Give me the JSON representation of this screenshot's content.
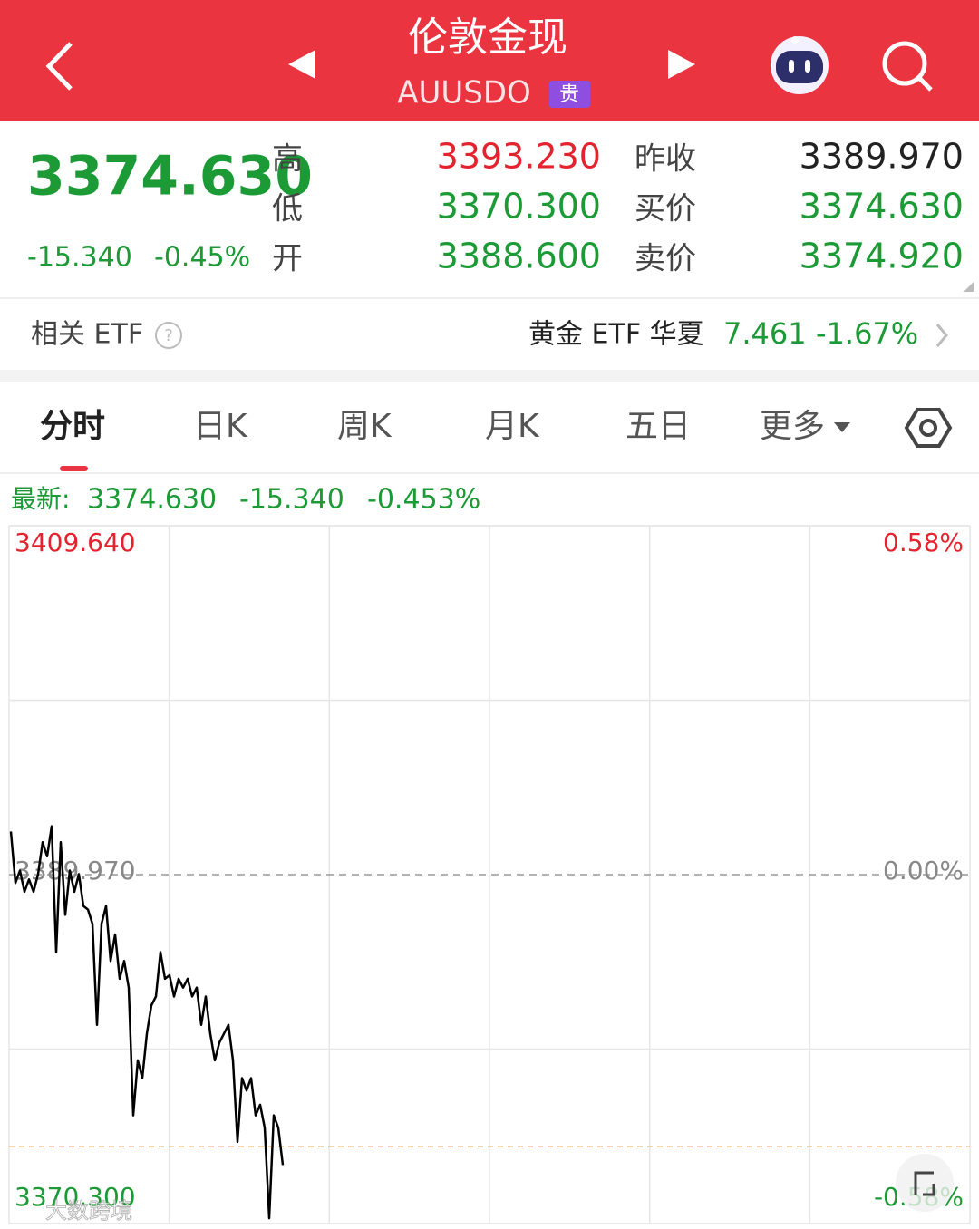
{
  "header": {
    "title": "伦敦金现",
    "symbol": "AUUSDO",
    "badge": "贵"
  },
  "quote": {
    "price": "3374.630",
    "change": "-15.340",
    "change_pct": "-0.45%",
    "stats": [
      {
        "label": "高",
        "value": "3393.230"
      },
      {
        "label": "低",
        "value": "3370.300"
      },
      {
        "label": "开",
        "value": "3388.600"
      },
      {
        "label": "昨收",
        "value": "3389.970"
      },
      {
        "label": "买价",
        "value": "3374.630"
      },
      {
        "label": "卖价",
        "value": "3374.920"
      }
    ]
  },
  "etf": {
    "label": "相关 ETF",
    "name": "黄金 ETF 华夏",
    "price": "7.461",
    "change_pct": "-1.67%"
  },
  "tabs": [
    "分时",
    "日K",
    "周K",
    "月K",
    "五日",
    "更多"
  ],
  "latest": {
    "label": "最新:",
    "price": "3374.630",
    "change": "-15.340",
    "change_pct": "-0.453%"
  },
  "chart_data": {
    "type": "line",
    "color": "#000000",
    "values": [
      3392.4,
      3389.5,
      3390.2,
      3389.0,
      3389.7,
      3389.0,
      3390.0,
      3391.8,
      3391.0,
      3392.7,
      3385.6,
      3391.8,
      3387.7,
      3390.2,
      3389.0,
      3390.0,
      3388.2,
      3388.0,
      3387.2,
      3381.5,
      3387.2,
      3388.2,
      3385.1,
      3386.6,
      3384.1,
      3385.1,
      3383.6,
      3376.4,
      3379.5,
      3378.5,
      3381.0,
      3382.6,
      3383.1,
      3385.6,
      3384.1,
      3384.3,
      3383.1,
      3384.1,
      3383.6,
      3384.1,
      3383.1,
      3383.6,
      3381.5,
      3383.1,
      3381.0,
      3379.5,
      3380.5,
      3381.0,
      3381.5,
      3379.5,
      3374.9,
      3378.5,
      3377.8,
      3378.5,
      3376.4,
      3377.0,
      3375.7,
      3370.6,
      3376.4,
      3375.7,
      3373.6
    ],
    "ylim": [
      3370.3,
      3409.64
    ],
    "yticks": [
      {
        "value": 3409.64,
        "label": "3409.640"
      },
      {
        "value": 3389.97,
        "label": "3389.970"
      },
      {
        "value": 3370.3,
        "label": "3370.300"
      }
    ],
    "y2lim": [
      -0.58,
      0.58
    ],
    "y2ticks": [
      {
        "value": 0.58,
        "label": "0.58%"
      },
      {
        "value": 0,
        "label": "0.00%"
      },
      {
        "value": -0.58,
        "label": "-0.58%"
      }
    ],
    "reference_line": 3374.63
  },
  "watermark": "大数跨境"
}
